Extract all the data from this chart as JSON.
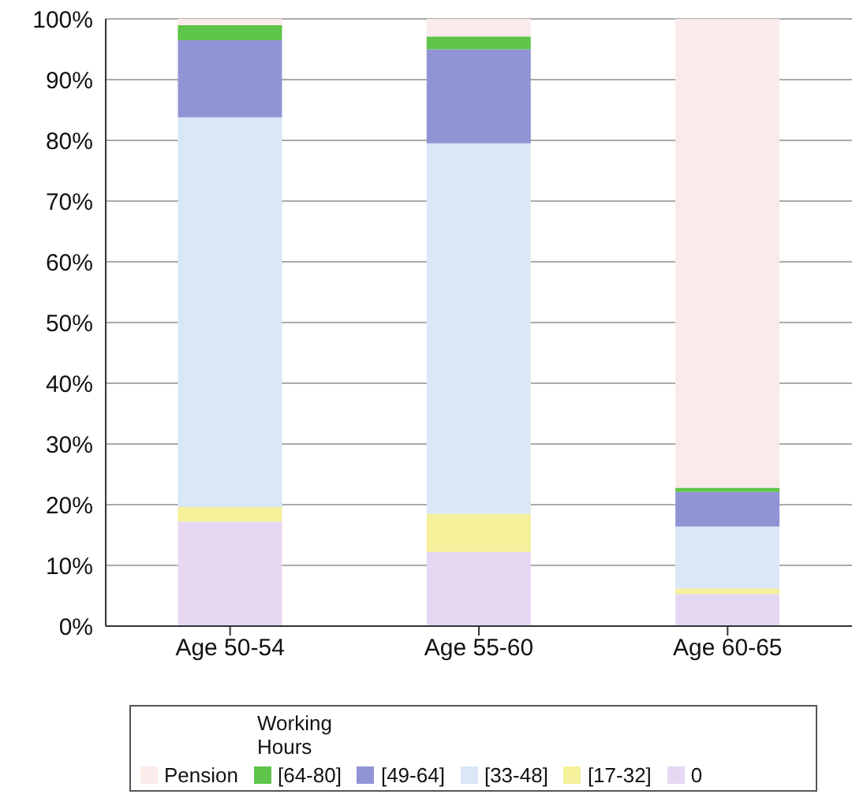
{
  "chart_data": {
    "type": "bar",
    "stacked": true,
    "categories": [
      "Age 50-54",
      "Age 55-60",
      "Age 60-65"
    ],
    "series": [
      {
        "name": "0",
        "color": "#e6d8f2",
        "values": [
          17.2,
          12.2,
          5.3
        ]
      },
      {
        "name": "[17-32]",
        "color": "#f5f09a",
        "values": [
          2.4,
          6.3,
          0.9
        ]
      },
      {
        "name": "[33-48]",
        "color": "#d9e7f6",
        "values": [
          64.2,
          61.0,
          10.2
        ]
      },
      {
        "name": "[49-64]",
        "color": "#9194d4",
        "values": [
          12.7,
          15.5,
          5.7
        ]
      },
      {
        "name": "[64-80]",
        "color": "#5ec44a",
        "values": [
          2.5,
          2.1,
          0.7
        ]
      },
      {
        "name": "Pension",
        "color": "#fbeaea",
        "values": [
          1.0,
          2.9,
          77.2
        ]
      }
    ],
    "ylim": [
      0,
      100
    ],
    "yticks": [
      {
        "value": 0,
        "label": "0%"
      },
      {
        "value": 10,
        "label": "10%"
      },
      {
        "value": 20,
        "label": "20%"
      },
      {
        "value": 30,
        "label": "30%"
      },
      {
        "value": 40,
        "label": "40%"
      },
      {
        "value": 50,
        "label": "50%"
      },
      {
        "value": 60,
        "label": "60%"
      },
      {
        "value": 70,
        "label": "70%"
      },
      {
        "value": 80,
        "label": "80%"
      },
      {
        "value": 90,
        "label": "90%"
      },
      {
        "value": 100,
        "label": "100%"
      }
    ],
    "grid": "y",
    "legend": "bottom",
    "legend_title": "Working Hours"
  }
}
